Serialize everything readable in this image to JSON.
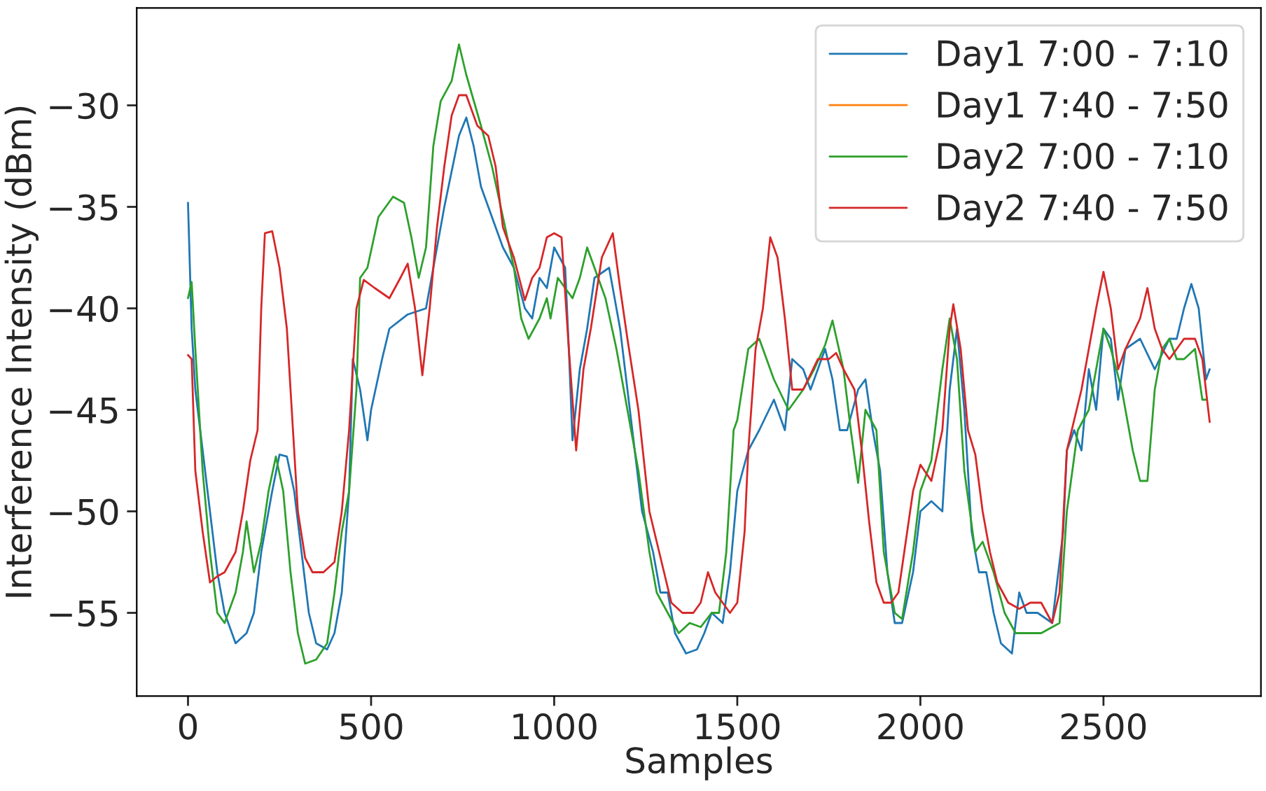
{
  "chart_data": {
    "type": "line",
    "xlabel": "Samples",
    "ylabel": "Interference Intensity (dBm)",
    "xlim": [
      -140,
      2930
    ],
    "ylim": [
      -59.1,
      -25.2
    ],
    "xticks": [
      0,
      500,
      1000,
      1500,
      2000,
      2500
    ],
    "yticks": [
      -55,
      -50,
      -45,
      -40,
      -35,
      -30
    ],
    "grid": false,
    "legend": "top right",
    "line_style": "solid",
    "series": [
      {
        "name": "Day1 7:00 - 7:10",
        "color": "#1f77b4",
        "x": [
          0,
          10,
          20,
          40,
          60,
          80,
          100,
          130,
          160,
          180,
          200,
          230,
          250,
          270,
          290,
          310,
          330,
          350,
          380,
          400,
          420,
          440,
          450,
          470,
          490,
          500,
          530,
          550,
          600,
          650,
          670,
          700,
          740,
          760,
          780,
          800,
          830,
          860,
          890,
          920,
          940,
          960,
          980,
          1000,
          1030,
          1040,
          1050,
          1070,
          1090,
          1110,
          1150,
          1180,
          1220,
          1240,
          1270,
          1290,
          1310,
          1330,
          1360,
          1390,
          1410,
          1430,
          1460,
          1480,
          1500,
          1530,
          1560,
          1600,
          1630,
          1650,
          1680,
          1700,
          1720,
          1740,
          1760,
          1780,
          1800,
          1830,
          1850,
          1870,
          1890,
          1910,
          1930,
          1950,
          1980,
          2000,
          2030,
          2060,
          2080,
          2100,
          2120,
          2140,
          2160,
          2180,
          2200,
          2220,
          2250,
          2270,
          2290,
          2320,
          2360,
          2390,
          2400,
          2420,
          2440,
          2460,
          2480,
          2500,
          2520,
          2540,
          2560,
          2600,
          2640,
          2680,
          2700,
          2720,
          2740,
          2760,
          2780,
          2790
        ],
        "values": [
          -34.8,
          -41,
          -44,
          -47,
          -50,
          -53,
          -55,
          -56.5,
          -56,
          -55,
          -52,
          -49,
          -47.2,
          -47.3,
          -49,
          -52,
          -55,
          -56.5,
          -56.8,
          -56,
          -54,
          -49,
          -42.5,
          -44,
          -46.5,
          -45,
          -42.5,
          -41,
          -40.3,
          -40,
          -38,
          -35,
          -31.5,
          -30.6,
          -32,
          -34,
          -35.5,
          -37,
          -38,
          -40,
          -40.5,
          -38.5,
          -39,
          -37,
          -38,
          -42,
          -46.5,
          -43,
          -41,
          -38.5,
          -38,
          -41,
          -47,
          -50,
          -52,
          -54,
          -54,
          -56,
          -57,
          -56.8,
          -56,
          -55,
          -55.5,
          -53,
          -49,
          -47,
          -46,
          -44.5,
          -46,
          -42.5,
          -43,
          -44,
          -43,
          -42,
          -43.5,
          -46,
          -46,
          -44,
          -43.5,
          -46,
          -48,
          -53,
          -55.5,
          -55.5,
          -53,
          -50,
          -49.5,
          -50,
          -44,
          -41,
          -45,
          -51,
          -53,
          -53,
          -55,
          -56.5,
          -57,
          -54,
          -55,
          -55,
          -55.5,
          -51,
          -47,
          -46,
          -47,
          -43,
          -45,
          -41,
          -41.5,
          -44.5,
          -42,
          -41.5,
          -43,
          -41.5,
          -41.5,
          -40,
          -38.8,
          -40,
          -43.5,
          -43
        ]
      },
      {
        "name": "Day1 7:40 - 7:50",
        "color": "#ff7f0e"
      },
      {
        "name": "Day2 7:00 - 7:10",
        "color": "#2ca02c",
        "x": [
          0,
          10,
          20,
          40,
          60,
          80,
          100,
          130,
          150,
          160,
          180,
          200,
          220,
          240,
          260,
          280,
          300,
          320,
          350,
          380,
          400,
          420,
          440,
          460,
          470,
          490,
          520,
          560,
          590,
          610,
          630,
          650,
          670,
          690,
          720,
          740,
          760,
          800,
          830,
          860,
          890,
          910,
          930,
          960,
          980,
          990,
          1010,
          1050,
          1070,
          1090,
          1100,
          1120,
          1140,
          1170,
          1200,
          1230,
          1260,
          1280,
          1310,
          1340,
          1370,
          1400,
          1430,
          1450,
          1470,
          1490,
          1500,
          1530,
          1560,
          1600,
          1640,
          1680,
          1710,
          1740,
          1760,
          1790,
          1810,
          1830,
          1850,
          1880,
          1900,
          1930,
          1950,
          1980,
          2000,
          2030,
          2060,
          2080,
          2100,
          2120,
          2150,
          2170,
          2200,
          2230,
          2260,
          2290,
          2330,
          2380,
          2400,
          2430,
          2460,
          2480,
          2500,
          2520,
          2550,
          2580,
          2600,
          2620,
          2640,
          2660,
          2680,
          2700,
          2720,
          2750,
          2770,
          2780
        ],
        "values": [
          -39.5,
          -38.7,
          -42,
          -48,
          -52,
          -55,
          -55.5,
          -54,
          -52,
          -50.5,
          -53,
          -51.5,
          -49,
          -47.3,
          -49,
          -53,
          -56,
          -57.5,
          -57.3,
          -56.5,
          -54,
          -51,
          -49,
          -44,
          -38.5,
          -38,
          -35.5,
          -34.5,
          -34.8,
          -36.5,
          -38.5,
          -37,
          -32,
          -29.8,
          -28.8,
          -27,
          -28.5,
          -31,
          -33,
          -35.5,
          -38,
          -40.5,
          -41.5,
          -40.5,
          -39.5,
          -40.5,
          -38.5,
          -39.5,
          -38.5,
          -37,
          -37.5,
          -38.5,
          -39.5,
          -42,
          -45,
          -48,
          -52,
          -54,
          -55,
          -56,
          -55.5,
          -55.7,
          -55,
          -55,
          -52,
          -46,
          -45.5,
          -42,
          -41.5,
          -43.5,
          -45,
          -44,
          -43,
          -41.8,
          -40.6,
          -43,
          -46,
          -48.6,
          -45,
          -46,
          -52,
          -55,
          -55.3,
          -52,
          -49,
          -47.5,
          -43,
          -40.5,
          -42.5,
          -48,
          -52,
          -51.5,
          -53,
          -55,
          -56,
          -56,
          -56,
          -55.5,
          -50,
          -46,
          -45,
          -43,
          -41,
          -42,
          -44,
          -47,
          -48.5,
          -48.5,
          -44,
          -42,
          -41.5,
          -42.5,
          -42.5,
          -42,
          -44.5,
          -44.5
        ]
      },
      {
        "name": "Day2 7:40 - 7:50",
        "color": "#d62728",
        "x": [
          0,
          10,
          20,
          40,
          60,
          80,
          100,
          130,
          150,
          170,
          190,
          200,
          210,
          230,
          250,
          270,
          280,
          300,
          320,
          340,
          370,
          400,
          420,
          440,
          460,
          480,
          510,
          550,
          580,
          600,
          620,
          640,
          660,
          680,
          700,
          720,
          740,
          760,
          790,
          820,
          840,
          860,
          890,
          920,
          940,
          960,
          980,
          1000,
          1020,
          1040,
          1060,
          1080,
          1100,
          1130,
          1160,
          1180,
          1200,
          1230,
          1260,
          1280,
          1300,
          1320,
          1350,
          1380,
          1400,
          1420,
          1440,
          1460,
          1480,
          1500,
          1520,
          1530,
          1550,
          1570,
          1590,
          1610,
          1630,
          1650,
          1680,
          1720,
          1750,
          1770,
          1790,
          1820,
          1840,
          1860,
          1880,
          1900,
          1920,
          1940,
          1960,
          1980,
          2000,
          2030,
          2060,
          2080,
          2090,
          2110,
          2130,
          2150,
          2170,
          2190,
          2210,
          2240,
          2270,
          2300,
          2330,
          2360,
          2380,
          2400,
          2420,
          2440,
          2460,
          2480,
          2500,
          2520,
          2540,
          2560,
          2600,
          2620,
          2640,
          2660,
          2680,
          2700,
          2720,
          2750,
          2770,
          2790
        ],
        "values": [
          -42.3,
          -42.5,
          -48,
          -51,
          -53.5,
          -53.2,
          -53,
          -52,
          -50,
          -47.5,
          -46,
          -40,
          -36.3,
          -36.2,
          -38,
          -41,
          -44,
          -50,
          -52.3,
          -53,
          -53,
          -52.5,
          -50,
          -46,
          -40,
          -38.6,
          -39,
          -39.5,
          -38.5,
          -37.8,
          -40,
          -43.3,
          -40,
          -36,
          -33,
          -30.5,
          -29.5,
          -29.5,
          -31,
          -31.5,
          -33,
          -36,
          -37.5,
          -39.6,
          -38.5,
          -38,
          -36.5,
          -36.3,
          -36.5,
          -42,
          -47,
          -43,
          -41,
          -37.5,
          -36.3,
          -39,
          -41.5,
          -45,
          -50,
          -51.5,
          -53,
          -54.5,
          -55,
          -55,
          -54.5,
          -53,
          -54,
          -54.5,
          -55,
          -54.5,
          -51,
          -47,
          -42,
          -40,
          -36.5,
          -37.5,
          -40.5,
          -44,
          -44,
          -42.5,
          -42.5,
          -42.2,
          -43,
          -44,
          -47,
          -50.5,
          -53.5,
          -54.5,
          -54.5,
          -54,
          -51.5,
          -49,
          -47.7,
          -48.5,
          -46,
          -41,
          -39.8,
          -42,
          -46,
          -47.2,
          -50,
          -52,
          -53.5,
          -54.5,
          -54.8,
          -54.5,
          -54.5,
          -55.5,
          -54,
          -47,
          -45.5,
          -44,
          -42,
          -40,
          -38.2,
          -40,
          -43,
          -42,
          -40.5,
          -39,
          -41,
          -42,
          -42.5,
          -42,
          -41.5,
          -41.5,
          -42.5,
          -45.6
        ]
      }
    ]
  }
}
